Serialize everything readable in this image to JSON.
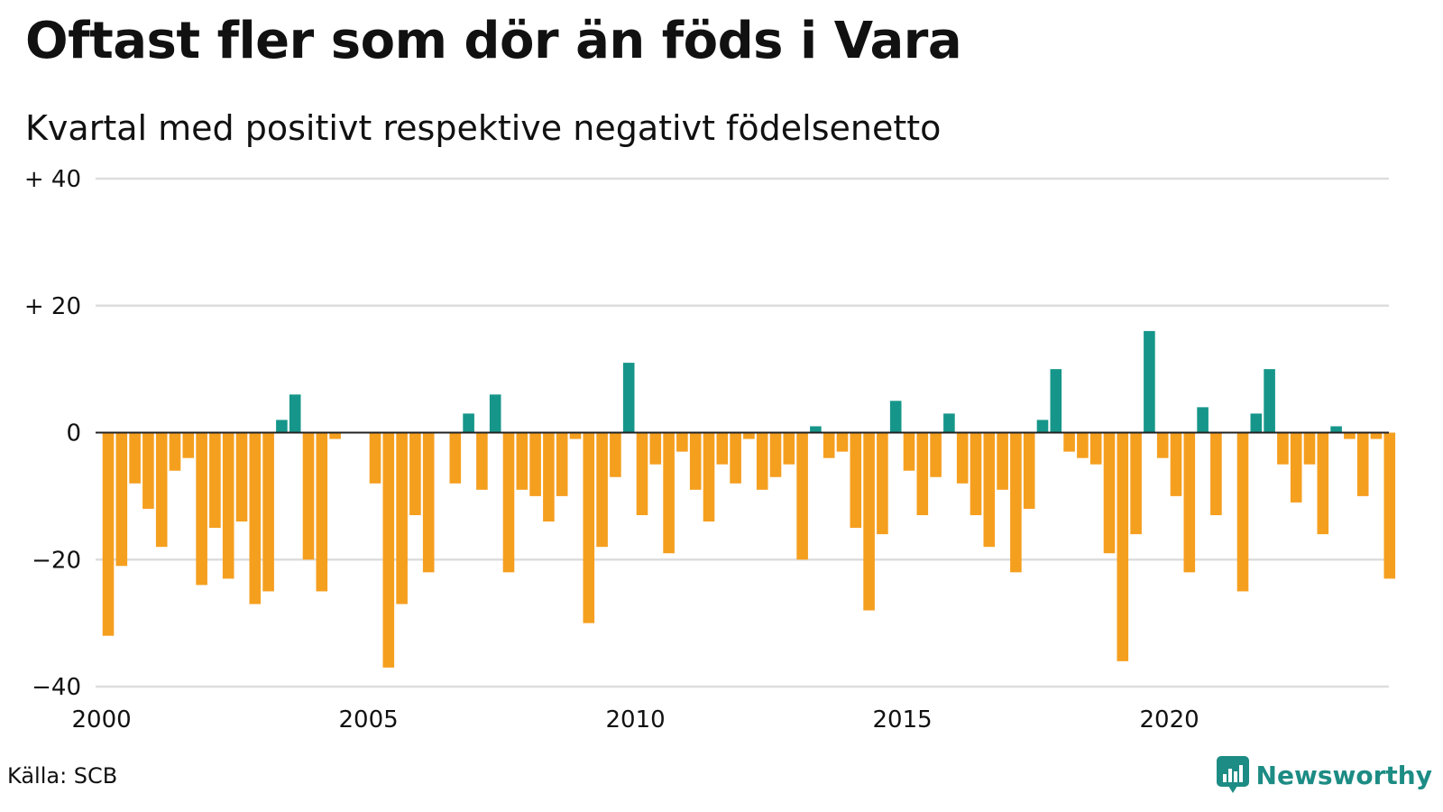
{
  "header": {
    "title": "Oftast fler som dör än föds i Vara",
    "subtitle": "Kvartal med positivt respektive negativt födelsenetto"
  },
  "footer": {
    "source": "Källa: SCB",
    "brand": "Newsworthy",
    "brand_icon": "bar-chart-speech-bubble-icon"
  },
  "colors": {
    "positive": "#16968a",
    "negative": "#f59f1f",
    "grid": "#dddddd",
    "zero_line": "#222222",
    "brand": "#1d8c84"
  },
  "chart_data": {
    "type": "bar",
    "title": "Oftast fler som dör än föds i Vara",
    "subtitle": "Kvartal med positivt respektive negativt födelsenetto",
    "xlabel": "",
    "ylabel": "",
    "x_start": 2000,
    "periods_per_year": 4,
    "xlim": [
      2000,
      2024.25
    ],
    "ylim": [
      -40,
      40
    ],
    "y_ticks": [
      {
        "value": 40,
        "label": "+ 40"
      },
      {
        "value": 20,
        "label": "+ 20"
      },
      {
        "value": 0,
        "label": "0"
      },
      {
        "value": -20,
        "label": "−20"
      },
      {
        "value": -40,
        "label": "−40"
      }
    ],
    "x_ticks": [
      {
        "value": 2000,
        "label": "2000"
      },
      {
        "value": 2005,
        "label": "2005"
      },
      {
        "value": 2010,
        "label": "2010"
      },
      {
        "value": 2015,
        "label": "2015"
      },
      {
        "value": 2020,
        "label": "2020"
      }
    ],
    "grid": true,
    "values": [
      -32,
      -21,
      -8,
      -12,
      -18,
      -6,
      -4,
      -24,
      -15,
      -23,
      -14,
      -27,
      -25,
      2,
      6,
      -20,
      -25,
      -1,
      0,
      0,
      -8,
      -37,
      -27,
      -13,
      -22,
      0,
      -8,
      3,
      -9,
      6,
      -22,
      -9,
      -10,
      -14,
      -10,
      -1,
      -30,
      -18,
      -7,
      11,
      -13,
      -5,
      -19,
      -3,
      -9,
      -14,
      -5,
      -8,
      -1,
      -9,
      -7,
      -5,
      -20,
      1,
      -4,
      -3,
      -15,
      -28,
      -16,
      5,
      -6,
      -13,
      -7,
      3,
      -8,
      -13,
      -18,
      -9,
      -22,
      -12,
      2,
      10,
      -3,
      -4,
      -5,
      -19,
      -36,
      -16,
      16,
      -4,
      -10,
      -22,
      4,
      -13,
      0,
      -25,
      3,
      10,
      -5,
      -11,
      -5,
      -16,
      1,
      -1,
      -10,
      -1,
      -23
    ]
  }
}
